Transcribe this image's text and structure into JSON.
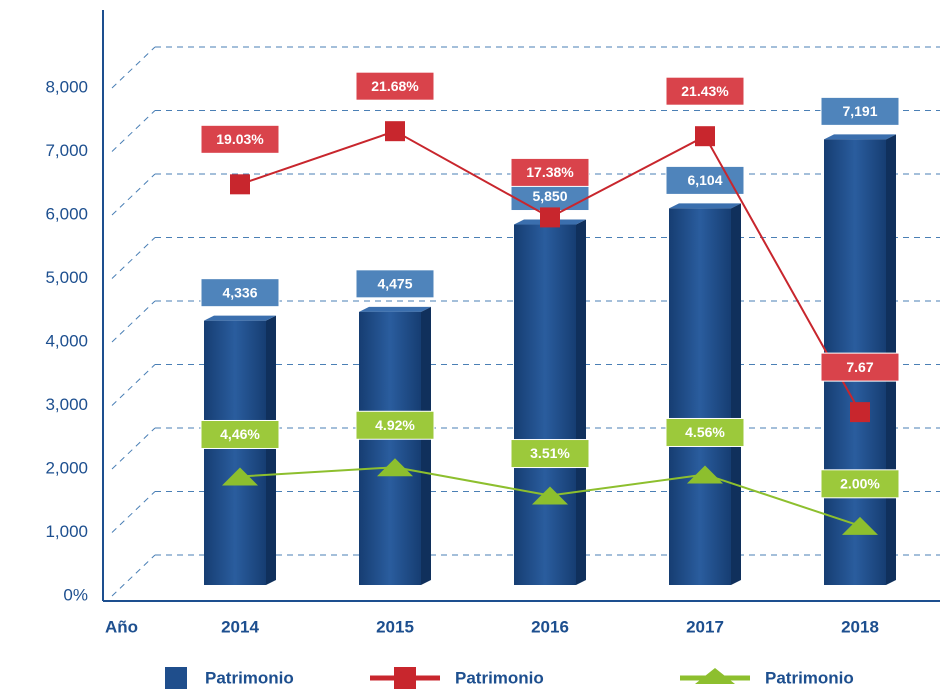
{
  "chart_data": {
    "type": "bar",
    "x_label": "Año",
    "categories": [
      "2014",
      "2015",
      "2016",
      "2017",
      "2018"
    ],
    "series": [
      {
        "name": "Patrimonio",
        "type": "bar",
        "color": "#1f4e8c",
        "values": [
          4336,
          4475,
          5850,
          6104,
          7191
        ],
        "value_labels": [
          "4,336",
          "4,475",
          "5,850",
          "6,104",
          "7,191"
        ],
        "label_color": "#4f84bb"
      },
      {
        "name": "Patrimonio",
        "type": "line",
        "axis": "y2",
        "marker": "square",
        "color": "#c8262d",
        "values": [
          19.03,
          21.68,
          17.38,
          21.43,
          7.67
        ],
        "value_labels": [
          "19.03%",
          "21.68%",
          "17.38%",
          "21.43%",
          "7.67"
        ],
        "label_color": "#d9434b"
      },
      {
        "name": "Patrimonio",
        "type": "line",
        "axis": "y2",
        "marker": "triangle",
        "color": "#8dbf2e",
        "values": [
          4.46,
          4.92,
          3.51,
          4.56,
          2.0
        ],
        "value_labels": [
          "4,46%",
          "4.92%",
          "3.51%",
          "4.56%",
          "2.00%"
        ],
        "label_color": "#9cc93b"
      }
    ],
    "ylim": [
      0,
      9000
    ],
    "yticks": [
      {
        "value": 0,
        "label": "0%"
      },
      {
        "value": 1000,
        "label": "1,000"
      },
      {
        "value": 2000,
        "label": "2,000"
      },
      {
        "value": 3000,
        "label": "3,000"
      },
      {
        "value": 4000,
        "label": "4,000"
      },
      {
        "value": 5000,
        "label": "5,000"
      },
      {
        "value": 6000,
        "label": "6,000"
      },
      {
        "value": 7000,
        "label": "7,000"
      },
      {
        "value": 8000,
        "label": "8,000"
      }
    ],
    "y2lim": [
      -1.5,
      27
    ],
    "grid": true
  }
}
